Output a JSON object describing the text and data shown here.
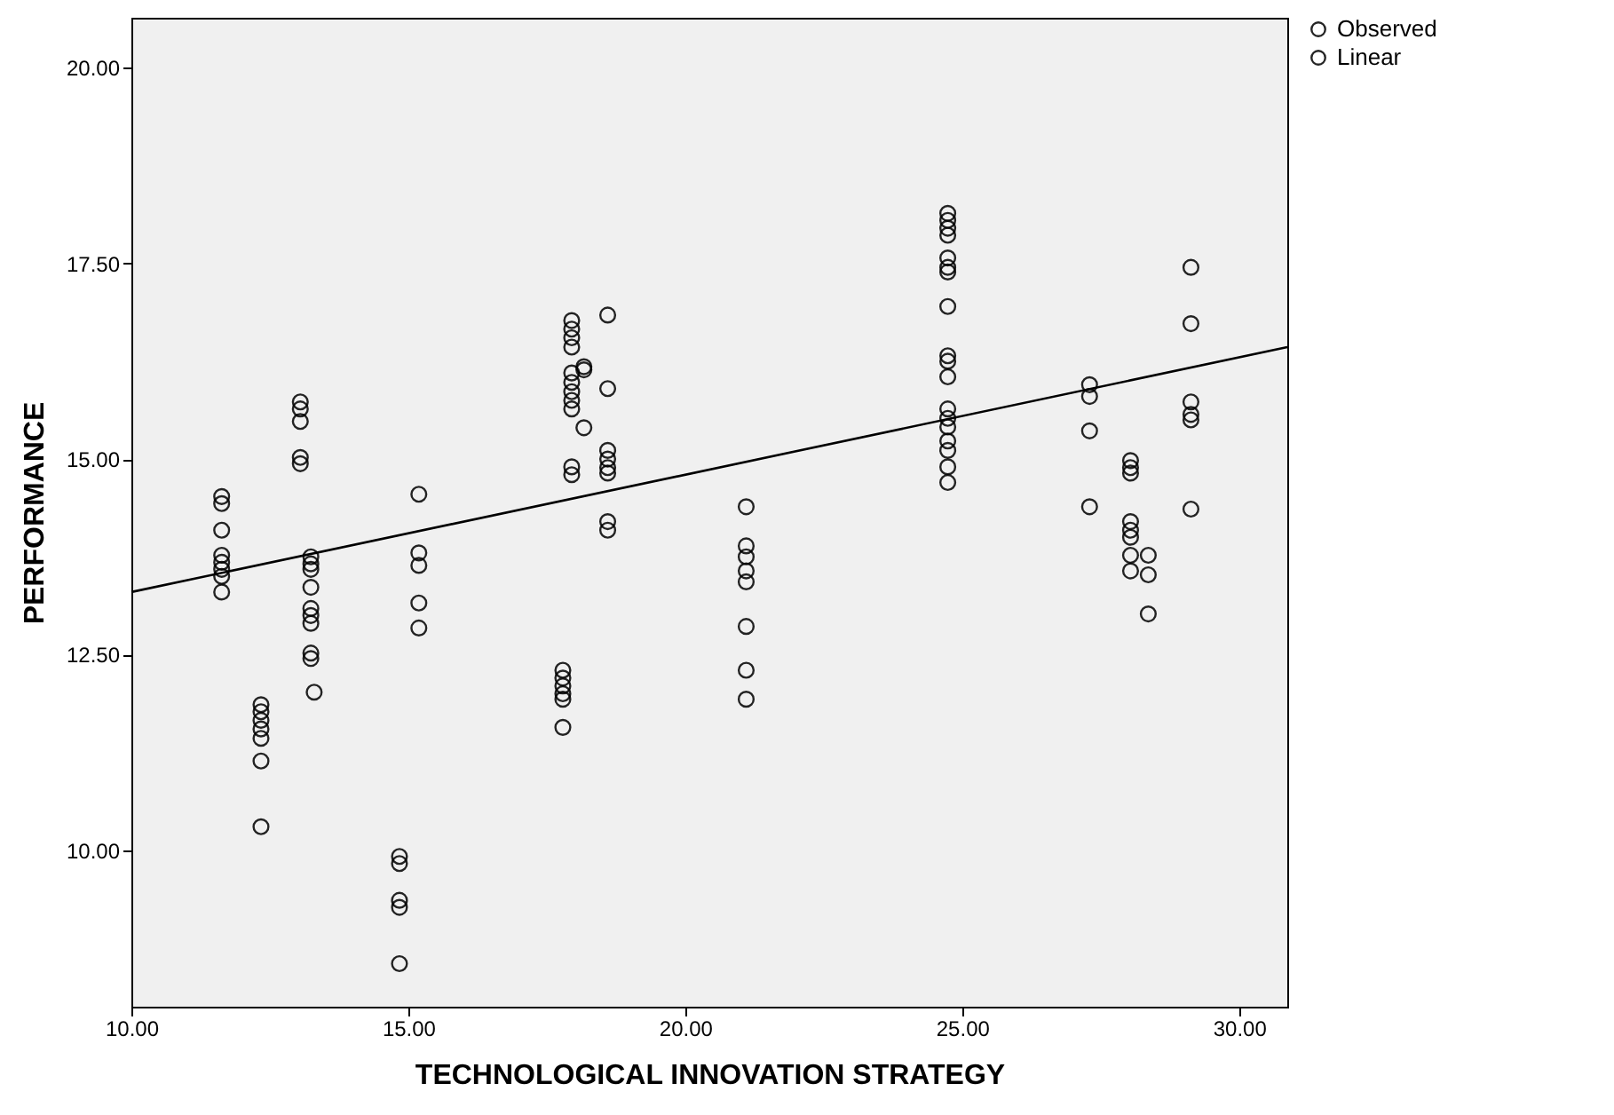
{
  "chart_data": {
    "type": "scatter",
    "xlabel": "TECHNOLOGICAL INNOVATION STRATEGY",
    "ylabel": "PERFORMANCE",
    "xlim": [
      10,
      30.87
    ],
    "ylim": [
      8,
      20.64
    ],
    "xticks": [
      {
        "value": 10,
        "label": "10.00"
      },
      {
        "value": 15,
        "label": "15.00"
      },
      {
        "value": 20,
        "label": "20.00"
      },
      {
        "value": 25,
        "label": "25.00"
      },
      {
        "value": 30,
        "label": "30.00"
      }
    ],
    "yticks": [
      {
        "value": 10,
        "label": "10.00"
      },
      {
        "value": 12.5,
        "label": "12.50"
      },
      {
        "value": 15,
        "label": "15.00"
      },
      {
        "value": 17.5,
        "label": "17.50"
      },
      {
        "value": 20,
        "label": "20.00"
      }
    ],
    "legend": "top right",
    "grid": false,
    "series": [
      {
        "name": "Observed",
        "type": "scatter",
        "marker": "circle",
        "color": "#000000",
        "x": [
          11.63,
          11.63,
          11.63,
          11.63,
          11.63,
          11.63,
          11.63,
          11.63,
          12.34,
          12.34,
          12.34,
          12.34,
          12.34,
          12.34,
          12.34,
          13.05,
          13.05,
          13.05,
          13.05,
          13.05,
          13.24,
          13.24,
          13.24,
          13.24,
          13.24,
          13.24,
          13.24,
          13.24,
          13.24,
          13.3,
          14.84,
          14.84,
          14.84,
          14.84,
          14.84,
          15.19,
          15.19,
          15.19,
          15.19,
          15.19,
          17.79,
          17.79,
          17.79,
          17.79,
          17.79,
          17.79,
          17.95,
          17.95,
          17.95,
          17.95,
          17.95,
          17.95,
          17.95,
          17.95,
          17.95,
          17.95,
          17.95,
          18.17,
          18.17,
          18.17,
          18.6,
          18.6,
          18.6,
          18.6,
          18.6,
          18.6,
          18.6,
          18.6,
          21.1,
          21.1,
          21.1,
          21.1,
          21.1,
          21.1,
          21.1,
          21.1,
          24.74,
          24.74,
          24.74,
          24.74,
          24.74,
          24.74,
          24.74,
          24.74,
          24.74,
          24.74,
          24.74,
          24.74,
          24.74,
          24.74,
          24.74,
          24.74,
          24.74,
          24.74,
          27.3,
          27.3,
          27.3,
          27.3,
          28.04,
          28.04,
          28.04,
          28.04,
          28.04,
          28.04,
          28.04,
          28.04,
          28.36,
          28.36,
          28.36,
          29.13,
          29.13,
          29.13,
          29.13,
          29.13,
          29.13
        ],
        "values": [
          14.52,
          14.43,
          14.09,
          13.77,
          13.68,
          13.59,
          13.5,
          13.3,
          11.86,
          11.77,
          11.66,
          11.55,
          11.43,
          11.14,
          10.3,
          15.73,
          15.64,
          15.48,
          15.02,
          14.94,
          13.75,
          13.66,
          13.59,
          13.36,
          13.09,
          13,
          12.9,
          12.52,
          12.45,
          12.02,
          9.92,
          9.83,
          9.36,
          9.27,
          8.55,
          14.55,
          13.8,
          13.64,
          13.16,
          12.84,
          12.3,
          12.2,
          12.1,
          12,
          11.93,
          11.57,
          16.77,
          16.66,
          16.55,
          16.43,
          16.1,
          15.98,
          15.86,
          15.75,
          15.64,
          14.9,
          14.8,
          16.18,
          16.14,
          15.4,
          16.84,
          15.9,
          15.11,
          15,
          14.89,
          14.82,
          14.2,
          14.09,
          14.39,
          13.89,
          13.75,
          13.57,
          13.43,
          12.86,
          12.3,
          11.93,
          18.14,
          18.05,
          17.95,
          17.86,
          17.57,
          17.45,
          17.39,
          16.95,
          16.32,
          16.25,
          16.05,
          15.64,
          15.52,
          15.41,
          15.23,
          15.11,
          14.9,
          14.7,
          15.95,
          15.8,
          15.36,
          14.39,
          14.98,
          14.89,
          14.82,
          14.2,
          14.09,
          14,
          13.77,
          13.57,
          13.77,
          13.52,
          13.02,
          17.45,
          16.73,
          15.73,
          15.57,
          15.5,
          14.36
        ]
      },
      {
        "name": "Linear",
        "type": "line",
        "line_style": "solid",
        "color": "#000000",
        "x": [
          10,
          30.87
        ],
        "values": [
          13.3,
          16.43
        ]
      }
    ]
  }
}
